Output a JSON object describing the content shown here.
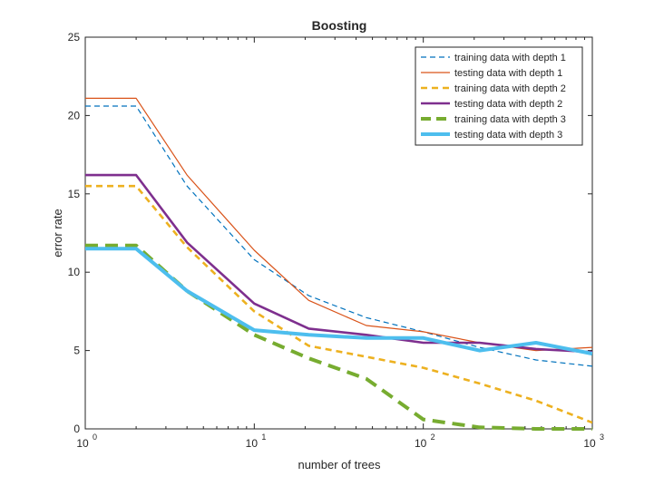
{
  "chart_data": {
    "type": "line",
    "title": "Boosting",
    "xlabel": "number of trees",
    "ylabel": "error rate",
    "xscale": "log",
    "xlim": [
      1,
      1000
    ],
    "ylim": [
      0,
      25
    ],
    "grid": false,
    "legend_position": "top-right",
    "x_ticks": [
      {
        "value": 1,
        "base": "10",
        "exp": "0"
      },
      {
        "value": 10,
        "base": "10",
        "exp": "1"
      },
      {
        "value": 100,
        "base": "10",
        "exp": "2"
      },
      {
        "value": 1000,
        "base": "10",
        "exp": "3"
      }
    ],
    "y_ticks": [
      "0",
      "5",
      "10",
      "15",
      "20",
      "25"
    ],
    "x": [
      1,
      2,
      4,
      10,
      21,
      46,
      100,
      215,
      464,
      1000
    ],
    "series": [
      {
        "name": "training data with depth 1",
        "color": "#0072BD",
        "style": "dashed",
        "weight": "thin",
        "values": [
          20.6,
          20.6,
          15.5,
          10.8,
          8.5,
          7.1,
          6.2,
          5.2,
          4.4,
          4.0
        ]
      },
      {
        "name": "testing data with depth 1",
        "color": "#D95319",
        "style": "solid",
        "weight": "thin",
        "values": [
          21.1,
          21.1,
          16.2,
          11.4,
          8.2,
          6.6,
          6.2,
          5.5,
          5.0,
          5.2
        ]
      },
      {
        "name": "training data with depth 2",
        "color": "#EDB120",
        "style": "dashed",
        "weight": "medium",
        "values": [
          15.5,
          15.5,
          11.6,
          7.5,
          5.3,
          4.6,
          3.9,
          2.9,
          1.8,
          0.4
        ]
      },
      {
        "name": "testing data with depth 2",
        "color": "#7E2F8E",
        "style": "solid",
        "weight": "medium",
        "values": [
          16.2,
          16.2,
          11.9,
          8.0,
          6.4,
          6.0,
          5.5,
          5.5,
          5.1,
          4.9
        ]
      },
      {
        "name": "training data with depth 3",
        "color": "#77AC30",
        "style": "dashed",
        "weight": "thick",
        "values": [
          11.7,
          11.7,
          8.8,
          6.0,
          4.5,
          3.2,
          0.6,
          0.1,
          0.0,
          0.0
        ]
      },
      {
        "name": "testing data with depth 3",
        "color": "#4DBEEE",
        "style": "solid",
        "weight": "thick",
        "values": [
          11.5,
          11.5,
          8.8,
          6.3,
          6.0,
          5.8,
          5.8,
          5.0,
          5.5,
          4.8
        ]
      }
    ]
  }
}
